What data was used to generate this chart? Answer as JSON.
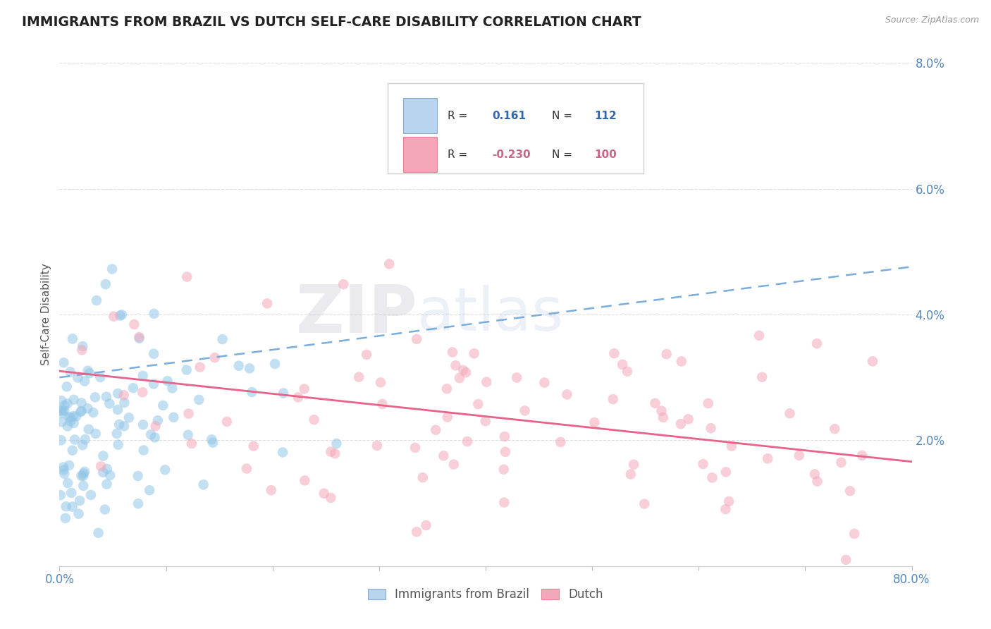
{
  "title": "IMMIGRANTS FROM BRAZIL VS DUTCH SELF-CARE DISABILITY CORRELATION CHART",
  "source": "Source: ZipAtlas.com",
  "ylabel": "Self-Care Disability",
  "xlim": [
    0.0,
    0.8
  ],
  "ylim": [
    0.0,
    0.08
  ],
  "xticks": [
    0.0,
    0.1,
    0.2,
    0.3,
    0.4,
    0.5,
    0.6,
    0.7,
    0.8
  ],
  "yticks": [
    0.0,
    0.02,
    0.04,
    0.06,
    0.08
  ],
  "ytick_labels": [
    "",
    "2.0%",
    "4.0%",
    "6.0%",
    "8.0%"
  ],
  "xtick_labels": [
    "0.0%",
    "",
    "",
    "",
    "",
    "",
    "",
    "",
    "80.0%"
  ],
  "series": [
    {
      "name": "Immigrants from Brazil",
      "R": 0.161,
      "N": 112,
      "color": "#93c6e8",
      "trend_color": "#7aaddb",
      "trend_intercept": 0.03,
      "trend_slope": 0.022,
      "trend_dashed": true
    },
    {
      "name": "Dutch",
      "R": -0.23,
      "N": 100,
      "color": "#f4a7b9",
      "trend_color": "#e8638a",
      "trend_intercept": 0.031,
      "trend_slope": -0.018,
      "trend_dashed": false
    }
  ],
  "legend_box_brazil": "#b8d4ee",
  "legend_box_dutch": "#f4a7b9",
  "watermark_zip": "ZIP",
  "watermark_atlas": "atlas",
  "background_color": "#ffffff",
  "grid_color": "#dddddd",
  "title_color": "#222222",
  "axis_label_color": "#555555",
  "tick_label_color": "#5588bb",
  "r_n_label_color": "#3366aa",
  "dutch_r_n_color": "#cc6688",
  "seed_brazil": 42,
  "seed_dutch": 7
}
